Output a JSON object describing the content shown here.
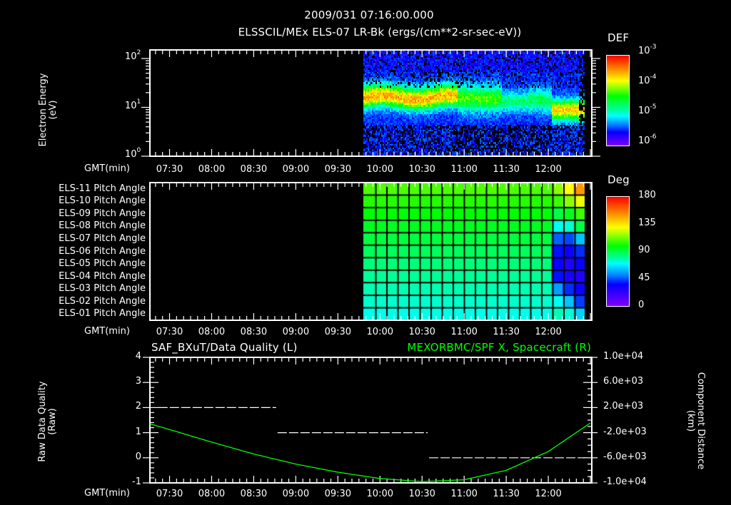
{
  "header": {
    "datetime": "2009/031 07:16:00.000",
    "subtitle": "ELSSCIL/MEx ELS-07 LR-Bk  (ergs/(cm**2-sr-sec-eV))"
  },
  "colors": {
    "background": "#000000",
    "axis": "#ffffff",
    "trace_right": "#00ff00",
    "trace_left": "#ffffff"
  },
  "time_axis": {
    "label": "GMT(min)",
    "start_minutes": 436,
    "end_minutes": 751,
    "ticks": [
      "07:30",
      "08:00",
      "08:30",
      "09:00",
      "09:30",
      "10:00",
      "10:30",
      "11:00",
      "11:30",
      "12:00"
    ],
    "tick_minutes": [
      450,
      480,
      510,
      540,
      570,
      600,
      630,
      660,
      690,
      720
    ]
  },
  "panel1": {
    "ylabel_line1": "Electron Energy",
    "ylabel_line2": "(eV)",
    "yticks": [
      {
        "base": "10",
        "exp": "2"
      },
      {
        "base": "10",
        "exp": "1"
      },
      {
        "base": "10",
        "exp": "0"
      }
    ],
    "colorbar": {
      "title": "DEF",
      "labels": [
        {
          "base": "10",
          "exp": "-3"
        },
        {
          "base": "10",
          "exp": "-4"
        },
        {
          "base": "10",
          "exp": "-5"
        },
        {
          "base": "10",
          "exp": "-6"
        }
      ]
    }
  },
  "panel2": {
    "rows": [
      "ELS-11 Pitch Angle",
      "ELS-10 Pitch Angle",
      "ELS-09 Pitch Angle",
      "ELS-08 Pitch Angle",
      "ELS-07 Pitch Angle",
      "ELS-06 Pitch Angle",
      "ELS-05 Pitch Angle",
      "ELS-04 Pitch Angle",
      "ELS-03 Pitch Angle",
      "ELS-02 Pitch Angle",
      "ELS-01 Pitch Angle"
    ],
    "colorbar": {
      "title": "Deg",
      "labels": [
        "180",
        "135",
        "90",
        "45",
        "0"
      ]
    }
  },
  "panel3": {
    "left_title": "SAF_BXuT/Data Quality (L)",
    "right_title": "MEXORBMC/SPF X, Spacecraft (R)",
    "ylabel_left_line1": "Raw Data Quality",
    "ylabel_left_line2": "(Raw)",
    "ylabel_right_line1": "Component Distance",
    "ylabel_right_line2": "(km)",
    "left_yticks": [
      "4",
      "3",
      "2",
      "1",
      "0",
      "-1"
    ],
    "right_yticks": [
      "1.0e+04",
      "6.0e+03",
      "2.0e+03",
      "-2.0e+03",
      "-6.0e+03",
      "-1.0e+04"
    ]
  },
  "chart_data": [
    {
      "type": "heatmap",
      "title": "ELSSCIL/MEx ELS-07 LR-Bk (ergs/(cm**2-sr-sec-eV))",
      "xlabel": "GMT(min)",
      "ylabel": "Electron Energy (eV)",
      "yscale": "log",
      "ylim": [
        1,
        150
      ],
      "xlim": [
        "07:16",
        "12:31"
      ],
      "colorbar": {
        "label": "DEF",
        "scale": "log",
        "range": [
          1e-06,
          0.001
        ]
      },
      "data_start": "09:52",
      "band": [
        {
          "from": "09:52",
          "to": "10:55",
          "center_eV": 15,
          "peak_DEF": 0.00015
        },
        {
          "from": "10:55",
          "to": "11:45",
          "center_eV": 12,
          "peak_DEF": 2e-05
        },
        {
          "from": "12:05",
          "to": "12:31",
          "center_eV": 7,
          "peak_DEF": 0.00012
        }
      ]
    },
    {
      "type": "heatmap",
      "title": "ELS Pitch Angle",
      "xlabel": "GMT(min)",
      "categories": [
        "ELS-11",
        "ELS-10",
        "ELS-09",
        "ELS-08",
        "ELS-07",
        "ELS-06",
        "ELS-05",
        "ELS-04",
        "ELS-03",
        "ELS-02",
        "ELS-01"
      ],
      "colorbar": {
        "label": "Deg",
        "range": [
          0,
          180
        ]
      },
      "data_start": "09:52",
      "typical_values_deg": [
        112,
        108,
        104,
        100,
        96,
        92,
        88,
        84,
        80,
        76,
        72
      ],
      "end_values_deg": [
        [
          118,
          130,
          150
        ],
        [
          110,
          118,
          128
        ],
        [
          95,
          100,
          110
        ],
        [
          70,
          75,
          95
        ],
        [
          45,
          40,
          60
        ],
        [
          30,
          25,
          35
        ],
        [
          25,
          20,
          25
        ],
        [
          30,
          22,
          20
        ],
        [
          55,
          35,
          25
        ],
        [
          70,
          60,
          38
        ],
        [
          80,
          75,
          62
        ]
      ]
    },
    {
      "type": "line",
      "title": "SAF_BXuT/Data Quality (L) / MEXORBMC/SPF X, Spacecraft (R)",
      "xlabel": "GMT(min)",
      "series": [
        {
          "name": "Data Quality (L)",
          "axis": "left",
          "style": "dashed-white",
          "segments": [
            {
              "from": "07:22",
              "to": "08:46",
              "value": 2
            },
            {
              "from": "08:47",
              "to": "10:34",
              "value": 1
            },
            {
              "from": "10:35",
              "to": "12:26",
              "value": 0
            }
          ]
        },
        {
          "name": "SPF X, Spacecraft (R)",
          "axis": "right",
          "style": "solid-green",
          "x": [
            "07:16",
            "07:30",
            "08:00",
            "08:30",
            "09:00",
            "09:30",
            "10:00",
            "10:30",
            "11:00",
            "11:30",
            "12:00",
            "12:31"
          ],
          "values": [
            -600,
            -1500,
            -3500,
            -5400,
            -7000,
            -8300,
            -9300,
            -9800,
            -9500,
            -8000,
            -5000,
            -300
          ]
        }
      ],
      "ylim_left": [
        -1,
        4
      ],
      "ylim_right": [
        -10000,
        10000
      ]
    }
  ]
}
